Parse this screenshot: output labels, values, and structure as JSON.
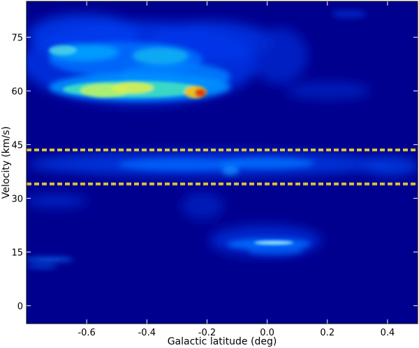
{
  "chart_data": {
    "type": "heatmap",
    "title": "",
    "xlabel": "Galactic latitude (deg)",
    "ylabel": "Velocity (km/s)",
    "xlim": [
      -0.8,
      0.5
    ],
    "ylim": [
      -5,
      85
    ],
    "x_ticks": [
      {
        "value": -0.6,
        "label": "-0.6"
      },
      {
        "value": -0.4,
        "label": "-0.4"
      },
      {
        "value": -0.2,
        "label": "-0.2"
      },
      {
        "value": 0.0,
        "label": "0.0"
      },
      {
        "value": 0.2,
        "label": "0.2"
      },
      {
        "value": 0.4,
        "label": "0.4"
      }
    ],
    "y_ticks": [
      {
        "value": 0,
        "label": "0"
      },
      {
        "value": 15,
        "label": "15"
      },
      {
        "value": 30,
        "label": "30"
      },
      {
        "value": 45,
        "label": "45"
      },
      {
        "value": 60,
        "label": "60"
      },
      {
        "value": 75,
        "label": "75"
      }
    ],
    "grid": false,
    "colormap": "jet",
    "background_color": "#00008f",
    "reference_lines": [
      {
        "axis": "y",
        "value": 43.5,
        "style": "dashed",
        "color": "#d8c23a"
      },
      {
        "axis": "y",
        "value": 34,
        "style": "dashed",
        "color": "#d8c23a"
      }
    ],
    "emission_regions": [
      {
        "b": [
          -0.78,
          -0.05
        ],
        "v": [
          52,
          82
        ],
        "level": 0.45
      },
      {
        "b": [
          -0.68,
          -0.4
        ],
        "v": [
          56,
          63
        ],
        "level": 0.62
      },
      {
        "b": [
          -0.3,
          -0.18
        ],
        "v": [
          57,
          62
        ],
        "level": 0.92
      },
      {
        "b": [
          -0.6,
          0.48
        ],
        "v": [
          35,
          42
        ],
        "level": 0.3
      },
      {
        "b": [
          -0.15,
          0.18
        ],
        "v": [
          13,
          19
        ],
        "level": 0.35
      },
      {
        "b": [
          -0.8,
          -0.62
        ],
        "v": [
          10,
          13
        ],
        "level": 0.3
      },
      {
        "b": [
          -0.78,
          -0.6
        ],
        "v": [
          27,
          31
        ],
        "level": 0.25
      }
    ]
  }
}
